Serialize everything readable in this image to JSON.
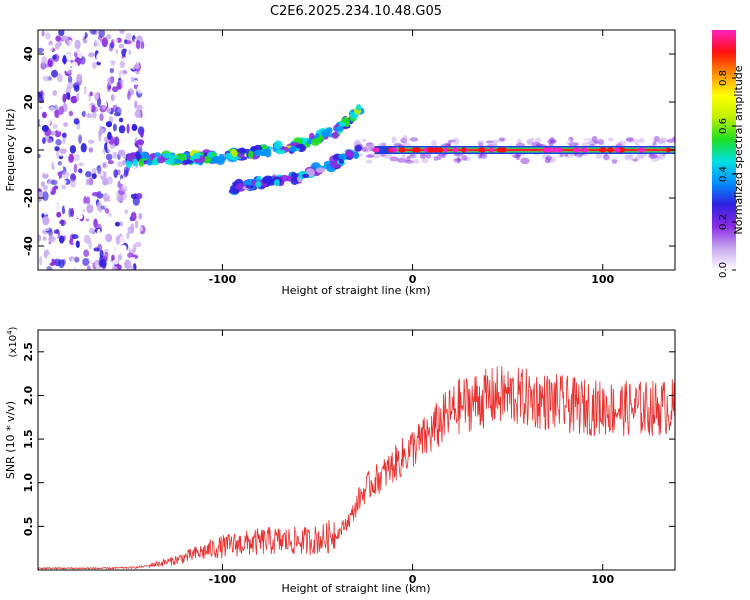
{
  "title": "C2E6.2025.234.10.48.G05",
  "chart_data": [
    {
      "type": "heatmap",
      "name": "spectrogram",
      "xlabel": "Height of straight line (km)",
      "ylabel": "Frequency (Hz)",
      "xlim": [
        -197,
        138
      ],
      "ylim": [
        -50,
        50
      ],
      "xticks": [
        -100,
        0,
        100
      ],
      "yticks": [
        -40,
        -20,
        0,
        20,
        40
      ],
      "xtick_labels": [
        "-100",
        "0",
        "100"
      ],
      "ytick_labels": [
        "-40",
        "-20",
        "0",
        "20",
        "40"
      ],
      "colorbar": {
        "label": "Normalized spectral amplitude",
        "range": [
          0,
          1
        ],
        "ticks": [
          0.0,
          0.2,
          0.4,
          0.6,
          0.8
        ],
        "tick_labels": [
          "0.0",
          "0.2",
          "0.4",
          "0.6",
          "0.8"
        ],
        "colors": [
          "#ffffff",
          "#c8a8f0",
          "#8a2be2",
          "#3020e0",
          "#0090ff",
          "#00e0e0",
          "#20e020",
          "#c0f000",
          "#ffff00",
          "#ff9000",
          "#ff1010",
          "#ff20c0"
        ]
      },
      "features": {
        "noise_region_x": [
          -197,
          -142
        ],
        "upper_branch": {
          "x": [
            -150,
            -100,
            -60,
            -40,
            -27
          ],
          "y": [
            -4,
            -3,
            2,
            8,
            17
          ]
        },
        "lower_branch": {
          "x": [
            -95,
            -60,
            -40,
            -28
          ],
          "y": [
            -16,
            -11,
            -5,
            0
          ]
        },
        "main_line": {
          "x": [
            -20,
            138
          ],
          "y": 0
        }
      }
    },
    {
      "type": "line",
      "name": "snr",
      "xlabel": "Height of straight line (km)",
      "ylabel": "SNR (10 * v/v)",
      "scale_label_base": "(x10",
      "scale_label_exp": "4",
      "scale_label_end": ")",
      "xlim": [
        -197,
        138
      ],
      "ylim": [
        0,
        2.75
      ],
      "xticks": [
        -100,
        0,
        100
      ],
      "yticks": [
        0.5,
        1.0,
        1.5,
        2.0,
        2.5
      ],
      "xtick_labels": [
        "-100",
        "0",
        "100"
      ],
      "ytick_labels": [
        "0.5",
        "1.0",
        "1.5",
        "2.0",
        "2.5"
      ],
      "color": "#e8312e",
      "series": [
        {
          "name": "SNR",
          "x": [
            -197,
            -180,
            -160,
            -145,
            -135,
            -125,
            -115,
            -105,
            -95,
            -85,
            -75,
            -65,
            -55,
            -45,
            -38,
            -32,
            -28,
            -24,
            -20,
            -15,
            -10,
            -5,
            0,
            5,
            10,
            15,
            20,
            25,
            30,
            35,
            40,
            45,
            50,
            55,
            60,
            65,
            70,
            75,
            80,
            85,
            90,
            95,
            100,
            105,
            110,
            115,
            120,
            125,
            130,
            138
          ],
          "y": [
            0.02,
            0.02,
            0.02,
            0.03,
            0.06,
            0.1,
            0.16,
            0.22,
            0.26,
            0.28,
            0.3,
            0.3,
            0.3,
            0.33,
            0.45,
            0.62,
            0.82,
            0.95,
            1.02,
            1.1,
            1.2,
            1.3,
            1.4,
            1.48,
            1.58,
            1.7,
            1.8,
            1.88,
            1.92,
            1.95,
            1.97,
            2.0,
            2.0,
            1.98,
            1.97,
            1.95,
            1.93,
            1.92,
            1.9,
            1.88,
            1.87,
            1.86,
            1.86,
            1.85,
            1.85,
            1.85,
            1.85,
            1.85,
            1.86,
            1.87
          ]
        }
      ]
    }
  ]
}
